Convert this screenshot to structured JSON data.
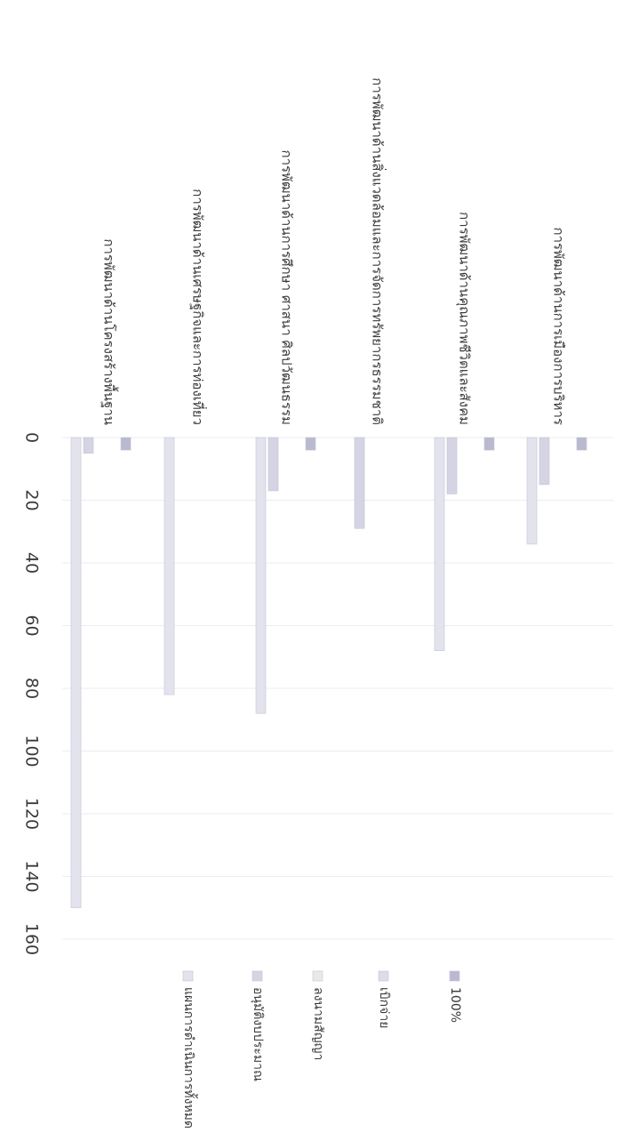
{
  "chart_data": {
    "type": "bar",
    "orientation": "horizontal",
    "rotation": "rotated 90 degrees clockwise on the page",
    "categories": [
      "การพัฒนาด้านการเมืองการบริหาร",
      "การพัฒนาด้านคุณภาพชีวิตและสังคม",
      "การพัฒนาด้านสิ่งแวดล้อมและการจัดการทรัพยากรธรรมชาติ",
      "การพัฒนาด้านการศึกษา ศาสนา ศิลปวัฒนธรรม",
      "การพัฒนาด้านเศรษฐกิจและการท่องเที่ยว",
      "การพัฒนาด้านโครงสร้างพื้นฐาน"
    ],
    "series": [
      {
        "name": "100%",
        "color": "#b9b9d0",
        "values": [
          4,
          4,
          0,
          4,
          0,
          4
        ]
      },
      {
        "name": "เบิกจ่าย",
        "color": "#dcdcec",
        "values": [
          0,
          0,
          0,
          0,
          0,
          0
        ]
      },
      {
        "name": "ลงนามสัญญา",
        "color": "#e9e9e9",
        "values": [
          0,
          0,
          0,
          0,
          0,
          0
        ]
      },
      {
        "name": "อนุมัติงบประมาณ",
        "color": "#d4d4e4",
        "values": [
          15,
          18,
          29,
          17,
          0,
          5
        ]
      },
      {
        "name": "แผนการดำเนินการทั้งหมด",
        "color": "#e3e3ee",
        "values": [
          34,
          68,
          0,
          88,
          82,
          150
        ]
      }
    ],
    "ylim": [
      0,
      160
    ],
    "ticks": [
      "0",
      "20",
      "40",
      "60",
      "80",
      "100",
      "120",
      "140",
      "160"
    ],
    "legend_position": "bottom",
    "grid": true
  }
}
